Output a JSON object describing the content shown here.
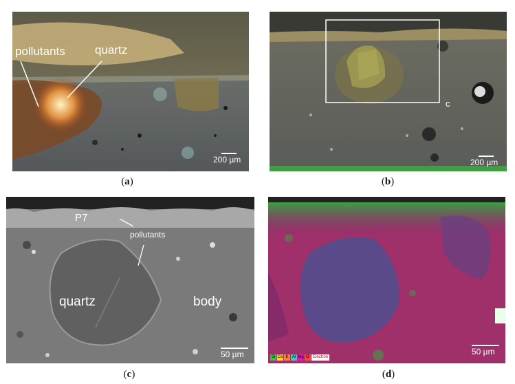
{
  "panels": {
    "a": {
      "caption_letter": "a",
      "labels": {
        "pollutants": "pollutants",
        "quartz": "quartz"
      },
      "scale_bar": "200 µm"
    },
    "b": {
      "caption_letter": "b",
      "marker": "c",
      "scale_bar": "200 µm"
    },
    "c": {
      "caption_letter": "c",
      "labels": {
        "p7": "P7",
        "pollutants": "pollutants",
        "quartz": "quartz",
        "body": "body"
      },
      "scale_bar": "50 µm"
    },
    "d": {
      "caption_letter": "d",
      "scale_bar": "50 µm",
      "legend": {
        "elements": [
          "Si",
          "Ca",
          "K",
          "Al",
          "Mg",
          "O"
        ],
        "colors": [
          "#2ecc40",
          "#ffdc00",
          "#ff851b",
          "#39cccc",
          "#f012be",
          "#ff4136"
        ],
        "electron_label": "Electron"
      }
    }
  }
}
